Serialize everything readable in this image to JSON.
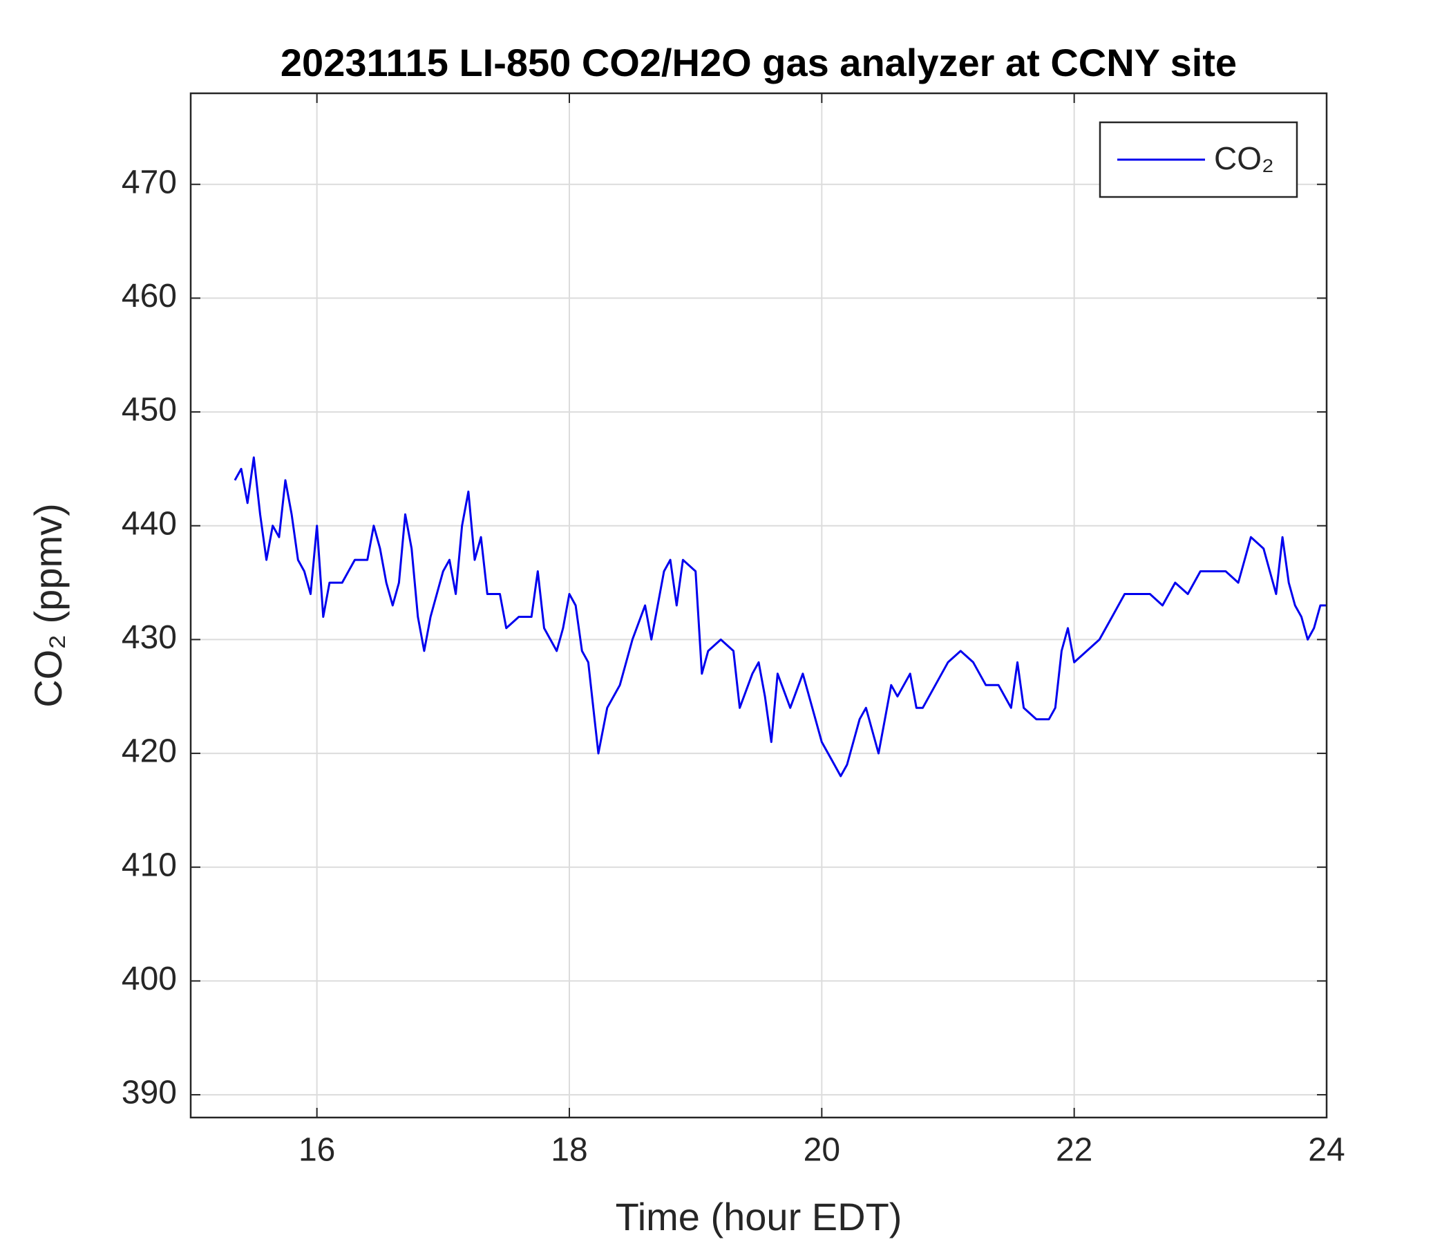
{
  "chart_data": {
    "type": "line",
    "title": "20231115 LI-850 CO2/H2O gas analyzer at CCNY site",
    "xlabel": "Time (hour EDT)",
    "ylabel": "CO₂ (ppmv)",
    "x": [
      15.35,
      15.4,
      15.45,
      15.5,
      15.55,
      15.6,
      15.65,
      15.7,
      15.75,
      15.8,
      15.85,
      15.9,
      15.95,
      16.0,
      16.05,
      16.1,
      16.2,
      16.3,
      16.4,
      16.45,
      16.5,
      16.55,
      16.6,
      16.65,
      16.7,
      16.75,
      16.8,
      16.85,
      16.9,
      17.0,
      17.05,
      17.1,
      17.15,
      17.2,
      17.25,
      17.3,
      17.35,
      17.45,
      17.5,
      17.6,
      17.7,
      17.75,
      17.8,
      17.85,
      17.9,
      17.95,
      18.0,
      18.05,
      18.1,
      18.15,
      18.2,
      18.23,
      18.3,
      18.4,
      18.5,
      18.6,
      18.65,
      18.75,
      18.8,
      18.85,
      18.9,
      19.0,
      19.05,
      19.1,
      19.2,
      19.3,
      19.35,
      19.45,
      19.5,
      19.55,
      19.6,
      19.65,
      19.75,
      19.85,
      19.95,
      20.0,
      20.05,
      20.1,
      20.15,
      20.2,
      20.3,
      20.35,
      20.4,
      20.45,
      20.5,
      20.55,
      20.6,
      20.7,
      20.75,
      20.8,
      20.9,
      21.0,
      21.1,
      21.2,
      21.3,
      21.4,
      21.5,
      21.55,
      21.6,
      21.7,
      21.8,
      21.85,
      21.9,
      21.95,
      22.0,
      22.1,
      22.2,
      22.3,
      22.4,
      22.5,
      22.6,
      22.7,
      22.8,
      22.9,
      23.0,
      23.1,
      23.2,
      23.3,
      23.35,
      23.4,
      23.5,
      23.55,
      23.6,
      23.65,
      23.7,
      23.75,
      23.8,
      23.85,
      23.9,
      23.95,
      24.0
    ],
    "series": [
      {
        "name": "CO₂",
        "color": "#0000ee",
        "values": [
          444,
          445,
          442,
          446,
          441,
          437,
          440,
          439,
          444,
          441,
          437,
          436,
          434,
          440,
          432,
          435,
          435,
          437,
          437,
          440,
          438,
          435,
          433,
          435,
          441,
          438,
          432,
          429,
          432,
          436,
          437,
          434,
          440,
          443,
          437,
          439,
          434,
          434,
          431,
          432,
          432,
          436,
          431,
          430,
          429,
          431,
          434,
          433,
          429,
          428,
          423,
          420,
          424,
          426,
          430,
          433,
          430,
          436,
          437,
          433,
          437,
          436,
          427,
          429,
          430,
          429,
          424,
          427,
          428,
          425,
          421,
          427,
          424,
          427,
          423,
          421,
          420,
          419,
          418,
          419,
          423,
          424,
          422,
          420,
          423,
          426,
          425,
          427,
          424,
          424,
          426,
          428,
          429,
          428,
          426,
          426,
          424,
          428,
          424,
          423,
          423,
          424,
          429,
          431,
          428,
          429,
          430,
          432,
          434,
          434,
          434,
          433,
          435,
          434,
          436,
          436,
          436,
          435,
          437,
          439,
          438,
          436,
          434,
          439,
          435,
          433,
          432,
          430,
          431,
          433,
          433
        ]
      }
    ],
    "xlim": [
      15,
      24
    ],
    "xticks": [
      16,
      18,
      20,
      22,
      24
    ],
    "ylim": [
      388,
      478
    ],
    "yticks": [
      390,
      400,
      410,
      420,
      430,
      440,
      450,
      460,
      470
    ],
    "grid": true,
    "legend": "upper right"
  }
}
